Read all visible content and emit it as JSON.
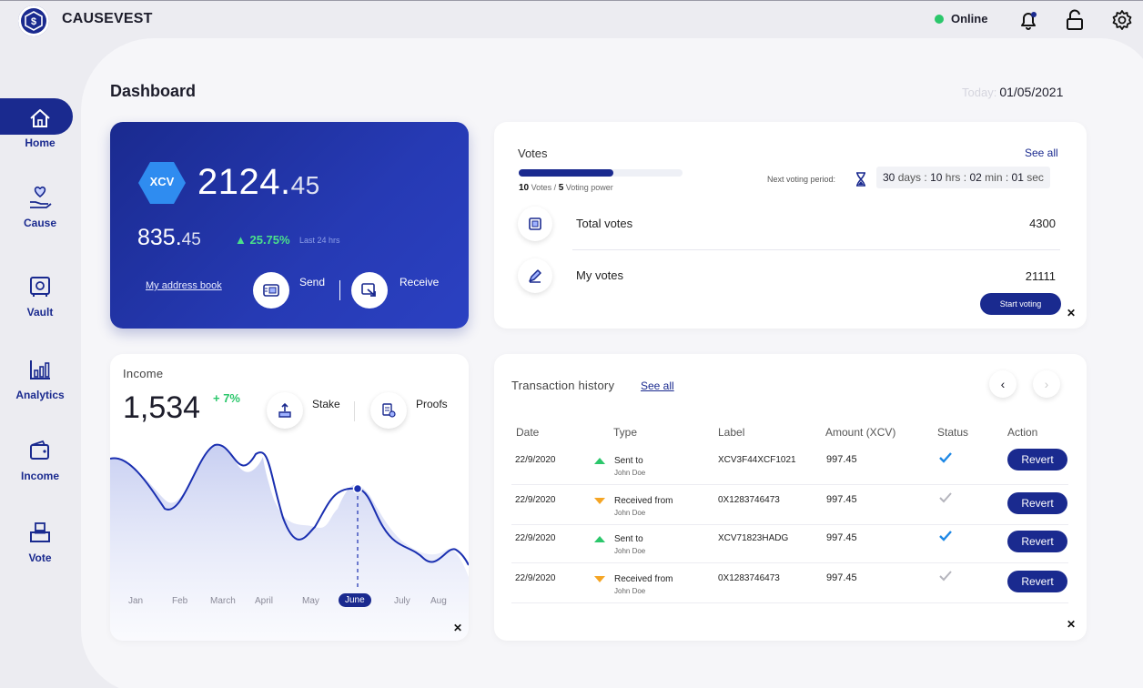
{
  "app": {
    "name": "CAUSEVEST",
    "status": "Online"
  },
  "sidebar": {
    "items": [
      {
        "label": "Home",
        "icon": "home-icon",
        "active": true
      },
      {
        "label": "Cause",
        "icon": "heart-hand-icon"
      },
      {
        "label": "Vault",
        "icon": "vault-icon"
      },
      {
        "label": "Analytics",
        "icon": "bar-chart-icon"
      },
      {
        "label": "Income",
        "icon": "wallet-icon"
      },
      {
        "label": "Vote",
        "icon": "ballot-box-icon"
      }
    ]
  },
  "header": {
    "title": "Dashboard",
    "today_label": "Today:",
    "date": "01/05/2021"
  },
  "wallet": {
    "currency": "XCV",
    "balance_int": "2124.",
    "balance_dec": "45",
    "sub_int": "835.",
    "sub_dec": "45",
    "change": "25.75%",
    "change_label": "Last 24 hrs",
    "address_book": "My address book",
    "send_label": "Send",
    "receive_label": "Receive"
  },
  "votes": {
    "title": "Votes",
    "see_all": "See all",
    "progress": 0.58,
    "votes_count": "10",
    "votes_word": "Votes /",
    "power_count": "5",
    "power_word": "Voting power",
    "next_period_label": "Next voting period:",
    "countdown": {
      "days": "30",
      "days_u": "days :",
      "hrs": "10",
      "hrs_u": "hrs :",
      "min": "02",
      "min_u": "min :",
      "sec": "01",
      "sec_u": "sec"
    },
    "rows": [
      {
        "label": "Total votes",
        "value": "4300"
      },
      {
        "label": "My votes",
        "value": "21111"
      }
    ],
    "start_button": "Start voting"
  },
  "income": {
    "title": "Income",
    "value": "1,534",
    "change": "+ 7%",
    "stake_label": "Stake",
    "proofs_label": "Proofs",
    "months": [
      "Jan",
      "Feb",
      "March",
      "April",
      "May",
      "June",
      "July",
      "Aug"
    ],
    "active_month": "June"
  },
  "transactions": {
    "title": "Transaction history",
    "see_all": "See all",
    "columns": [
      "Date",
      "Type",
      "Label",
      "Amount (XCV)",
      "Status",
      "Action"
    ],
    "rows": [
      {
        "date": "22/9/2020",
        "dir": "up",
        "type": "Sent to",
        "party": "John Doe",
        "label": "XCV3F44XCF1021",
        "amount": "997.45",
        "status": "confirmed",
        "action": "Revert"
      },
      {
        "date": "22/9/2020",
        "dir": "down",
        "type": "Received from",
        "party": "John Doe",
        "label": "0X1283746473",
        "amount": "997.45",
        "status": "pending",
        "action": "Revert"
      },
      {
        "date": "22/9/2020",
        "dir": "up",
        "type": "Sent to",
        "party": "John Doe",
        "label": "XCV71823HADG",
        "amount": "997.45",
        "status": "confirmed",
        "action": "Revert"
      },
      {
        "date": "22/9/2020",
        "dir": "down",
        "type": "Received from",
        "party": "John Doe",
        "label": "0X1283746473",
        "amount": "997.45",
        "status": "pending",
        "action": "Revert"
      }
    ]
  },
  "colors": {
    "primary": "#1a2a8f",
    "positive": "#2bc76b",
    "negative": "#f5a524",
    "check_confirmed": "#1e88e5",
    "check_pending": "#b5b5bd"
  }
}
